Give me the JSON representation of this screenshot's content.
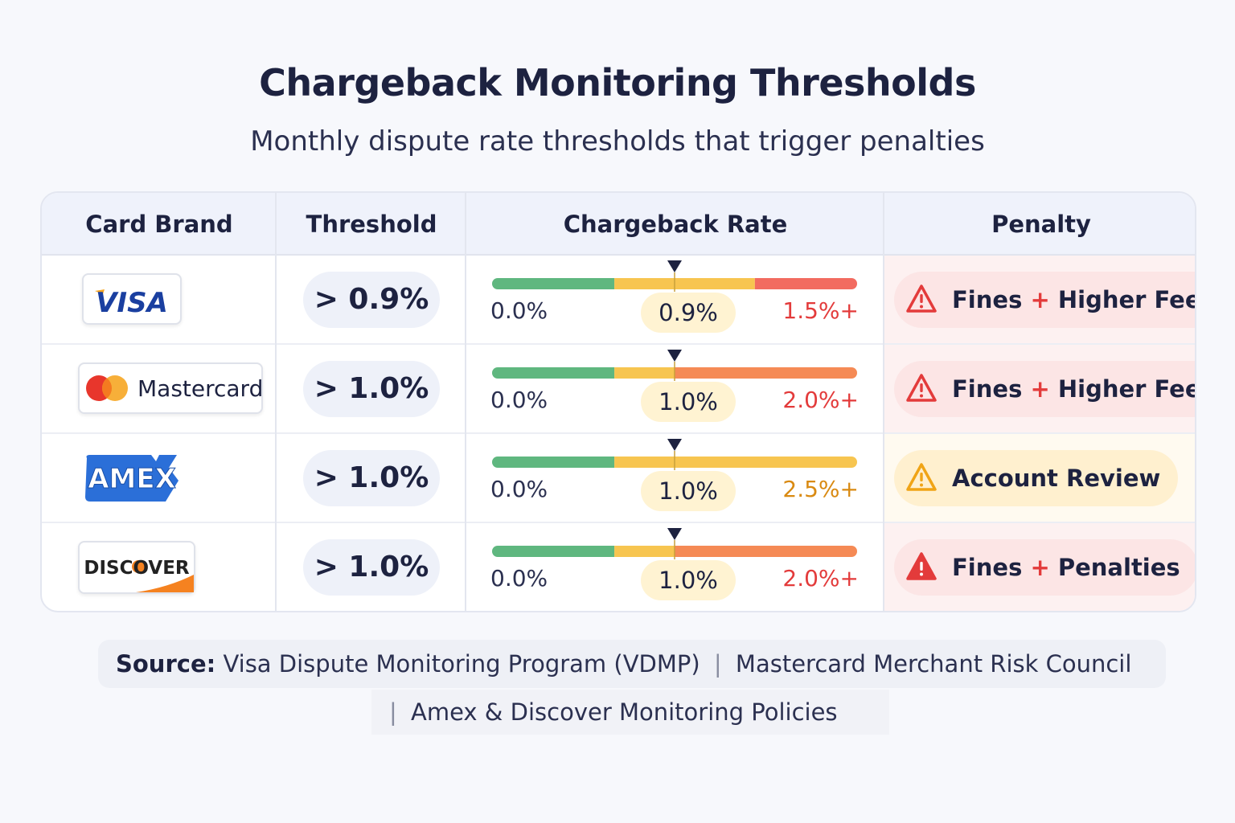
{
  "header": {
    "title": "Chargeback Monitoring Thresholds",
    "subtitle": "Monthly dispute rate thresholds that trigger penalties"
  },
  "columns": [
    "Card Brand",
    "Threshold",
    "Chargeback Rate",
    "Penalty"
  ],
  "colors": {
    "green": "#5fb77f",
    "yellow": "#f7c550",
    "orange": "#f58a55",
    "red": "#f26b60",
    "danger_text": "#e33b3b",
    "amber_text": "#d98a12"
  },
  "chart_data": {
    "type": "table",
    "title": "Chargeback Monitoring Thresholds",
    "subtitle": "Monthly dispute rate thresholds that trigger penalties",
    "rows": [
      {
        "brand": "Visa",
        "logo_text": "VISA",
        "threshold": "> 0.9%",
        "threshold_value": 0.9,
        "min_label": "0.0%",
        "threshold_label": "0.9%",
        "max_label": "1.5%+",
        "max_value": 1.5,
        "penalty_prefix": "Fines",
        "penalty_plus": "+",
        "penalty_suffix": "Higher Fees",
        "severity": "high"
      },
      {
        "brand": "Mastercard",
        "logo_text": "Mastercard",
        "threshold": "> 1.0%",
        "threshold_value": 1.0,
        "min_label": "0.0%",
        "threshold_label": "1.0%",
        "max_label": "2.0%+",
        "max_value": 2.0,
        "penalty_prefix": "Fines",
        "penalty_plus": "+",
        "penalty_suffix": "Higher Fees",
        "severity": "high"
      },
      {
        "brand": "Amex",
        "logo_text": "AMEX",
        "threshold": "> 1.0%",
        "threshold_value": 1.0,
        "min_label": "0.0%",
        "threshold_label": "1.0%",
        "max_label": "2.5%+",
        "max_value": 2.5,
        "penalty_prefix": "Account Review",
        "penalty_plus": "",
        "penalty_suffix": "",
        "severity": "medium"
      },
      {
        "brand": "Discover",
        "logo_text": "DISCOVER",
        "threshold": "> 1.0%",
        "threshold_value": 1.0,
        "min_label": "0.0%",
        "threshold_label": "1.0%",
        "max_label": "2.0%+",
        "max_value": 2.0,
        "penalty_prefix": "Fines",
        "penalty_plus": "+",
        "penalty_suffix": "Penalties",
        "severity": "critical"
      }
    ]
  },
  "footer": {
    "source_label": "Source:",
    "source_1": "Visa Dispute Monitoring Program (VDMP)",
    "separator": "|",
    "source_2": "Mastercard Merchant Risk Council",
    "source_3": "Amex & Discover Monitoring Policies"
  }
}
